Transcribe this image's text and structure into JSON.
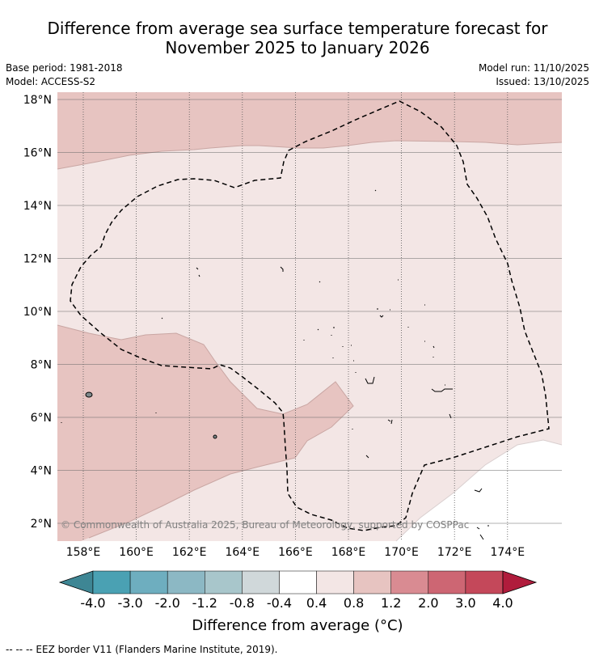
{
  "title_line1": "Difference from average sea surface temperature forecast for",
  "title_line2": "November 2025 to January 2026",
  "base_period": "Base period: 1981-2018",
  "model": "Model: ACCESS-S2",
  "model_run": "Model run: 11/10/2025",
  "issued": "Issued: 13/10/2025",
  "copyright": "© Commonwealth of Australia 2025, Bureau of Meteorology, supported by COSPPac",
  "lon_labels": [
    "158°E",
    "160°E",
    "162°E",
    "164°E",
    "166°E",
    "168°E",
    "170°E",
    "172°E",
    "174°E"
  ],
  "lat_labels": [
    "18°N",
    "16°N",
    "14°N",
    "12°N",
    "10°N",
    "8°N",
    "6°N",
    "4°N",
    "2°N"
  ],
  "colorbar": {
    "colors": [
      "#3e8694",
      "#4aa1b3",
      "#6eaebf",
      "#8cb8c4",
      "#a8c6cb",
      "#d0d8da",
      "#ffffff",
      "#f3e6e5",
      "#e7c4c1",
      "#d98b92",
      "#cd6673",
      "#c4485a",
      "#b01c3c"
    ],
    "tick_labels": [
      "-4.0",
      "-3.0",
      "-2.0",
      "-1.2",
      "-0.8",
      "-0.4",
      "0.4",
      "0.8",
      "1.2",
      "2.0",
      "3.0",
      "4.0"
    ]
  },
  "colorbar_title": "Difference from average (°C)",
  "footer": "-- -- -- EEZ border V11 (Flanders Marine Institute, 2019)."
}
